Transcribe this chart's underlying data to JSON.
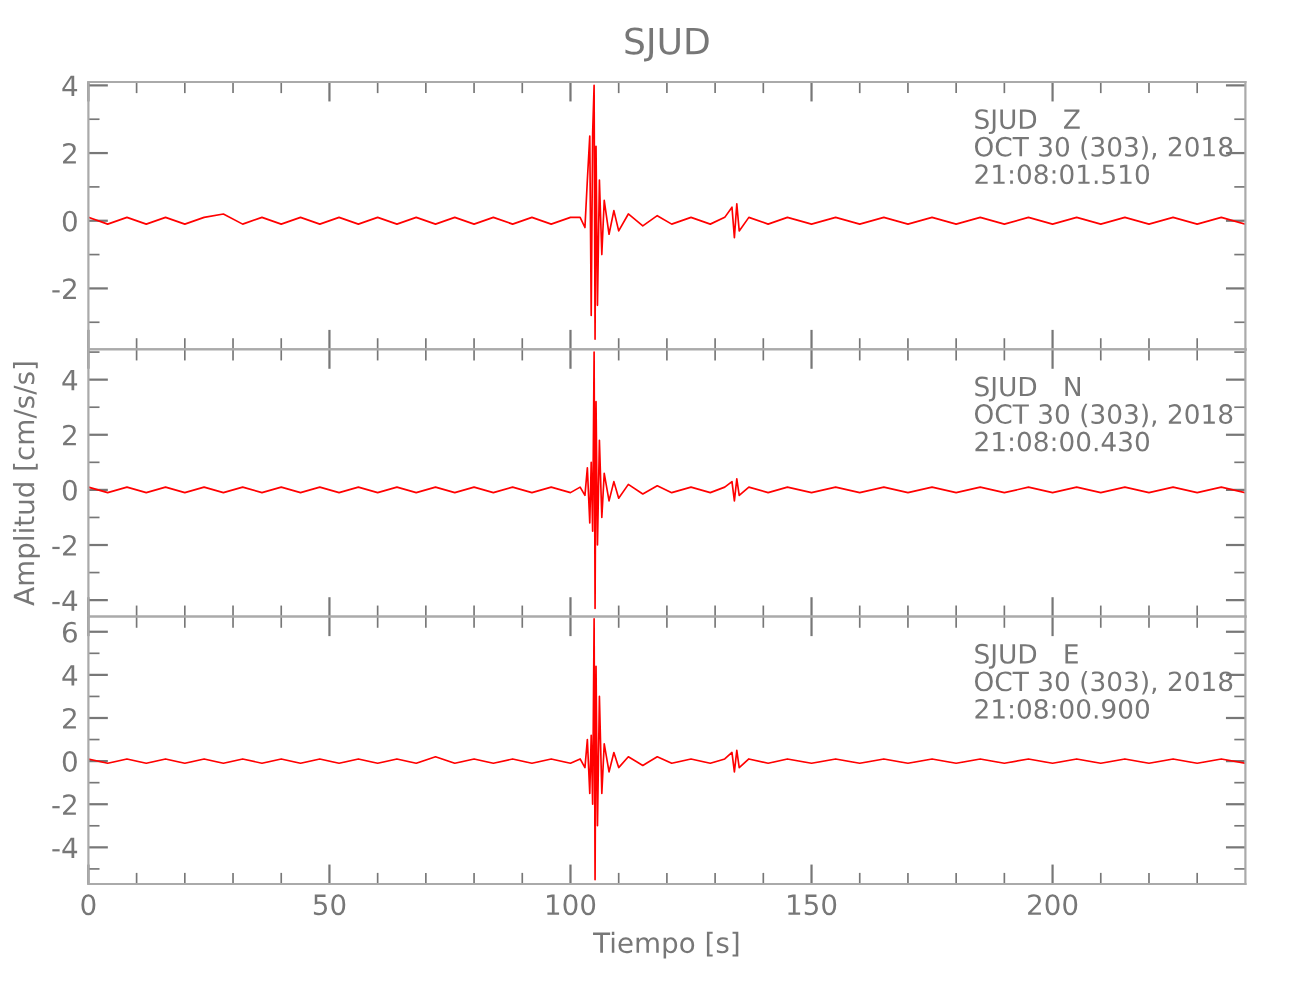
{
  "chart_data": [
    {
      "type": "line",
      "title": "SJUD",
      "tick_labels": "y",
      "annotations": [
        "SJUD   Z\nOCT 30 (303), 2018\n21:08:01.510"
      ],
      "x": [
        0,
        4,
        8,
        12,
        16,
        20,
        24,
        28,
        32,
        36,
        40,
        44,
        48,
        52,
        56,
        60,
        64,
        68,
        72,
        76,
        80,
        84,
        88,
        92,
        96,
        100,
        102,
        103,
        103.5,
        104,
        104.3,
        104.6,
        104.9,
        105.1,
        105.3,
        105.6,
        106,
        106.5,
        107,
        108,
        109,
        110,
        112,
        115,
        118,
        121,
        125,
        129,
        132,
        133.5,
        134,
        134.5,
        135,
        137,
        141,
        145,
        150,
        155,
        160,
        165,
        170,
        175,
        180,
        185,
        190,
        195,
        200,
        205,
        210,
        215,
        220,
        225,
        230,
        235,
        240
      ],
      "series": [
        {
          "color": "#ff0000",
          "values": [
            0.1,
            -0.1,
            0.1,
            -0.1,
            0.1,
            -0.1,
            0.1,
            0.2,
            -0.1,
            0.1,
            -0.1,
            0.1,
            -0.1,
            0.1,
            -0.1,
            0.1,
            -0.1,
            0.1,
            -0.1,
            0.1,
            -0.1,
            0.1,
            -0.1,
            0.1,
            -0.1,
            0.1,
            0.1,
            -0.2,
            1.2,
            2.5,
            -2.8,
            2.6,
            4.0,
            -3.5,
            2.2,
            -2.5,
            1.2,
            -1.0,
            0.6,
            -0.4,
            0.3,
            -0.3,
            0.2,
            -0.15,
            0.15,
            -0.1,
            0.1,
            -0.1,
            0.1,
            0.4,
            -0.5,
            0.5,
            -0.3,
            0.1,
            -0.1,
            0.1,
            -0.1,
            0.1,
            -0.1,
            0.1,
            -0.1,
            0.1,
            -0.1,
            0.1,
            -0.1,
            0.1,
            -0.1,
            0.1,
            -0.1,
            0.1,
            -0.1,
            0.1,
            -0.1,
            0.1,
            -0.1
          ]
        }
      ],
      "xlim": [
        0,
        240
      ],
      "ylim": [
        -3.8,
        4.1
      ],
      "xticks": [
        0,
        {
          "value": 10,
          "label": null
        },
        {
          "value": 20,
          "label": null
        },
        {
          "value": 30,
          "label": null
        },
        {
          "value": 40,
          "label": null
        },
        50,
        {
          "value": 60,
          "label": null
        },
        {
          "value": 70,
          "label": null
        },
        {
          "value": 80,
          "label": null
        },
        {
          "value": 90,
          "label": null
        },
        100,
        {
          "value": 110,
          "label": null
        },
        {
          "value": 120,
          "label": null
        },
        {
          "value": 130,
          "label": null
        },
        {
          "value": 140,
          "label": null
        },
        150,
        {
          "value": 160,
          "label": null
        },
        {
          "value": 170,
          "label": null
        },
        {
          "value": 180,
          "label": null
        },
        {
          "value": 190,
          "label": null
        },
        200,
        {
          "value": 210,
          "label": null
        },
        {
          "value": 220,
          "label": null
        },
        {
          "value": 230,
          "label": null
        }
      ],
      "yticks": [
        {
          "value": -3,
          "label": null
        },
        -2,
        {
          "value": -1,
          "label": null
        },
        0,
        {
          "value": 1,
          "label": null
        },
        2,
        {
          "value": 3,
          "label": null
        },
        4
      ]
    },
    {
      "type": "line",
      "ylabel": "Amplitud [cm/s/s]",
      "tick_labels": "y",
      "annotations": [
        "SJUD   N\nOCT 30 (303), 2018\n21:08:00.430"
      ],
      "x": [
        0,
        4,
        8,
        12,
        16,
        20,
        24,
        28,
        32,
        36,
        40,
        44,
        48,
        52,
        56,
        60,
        64,
        68,
        72,
        76,
        80,
        84,
        88,
        92,
        96,
        100,
        102,
        103,
        103.5,
        104,
        104.3,
        104.6,
        104.9,
        105.1,
        105.3,
        105.6,
        106,
        106.5,
        107,
        108,
        109,
        110,
        112,
        115,
        118,
        121,
        125,
        129,
        132,
        133.5,
        134,
        134.5,
        135,
        137,
        141,
        145,
        150,
        155,
        160,
        165,
        170,
        175,
        180,
        185,
        190,
        195,
        200,
        205,
        210,
        215,
        220,
        225,
        230,
        235,
        240
      ],
      "series": [
        {
          "color": "#ff0000",
          "values": [
            0.1,
            -0.1,
            0.1,
            -0.1,
            0.1,
            -0.1,
            0.1,
            -0.1,
            0.1,
            -0.1,
            0.1,
            -0.1,
            0.1,
            -0.1,
            0.1,
            -0.1,
            0.1,
            -0.1,
            0.1,
            -0.1,
            0.1,
            -0.1,
            0.1,
            -0.1,
            0.1,
            -0.1,
            0.1,
            -0.2,
            0.8,
            -1.2,
            1.0,
            -1.5,
            5.0,
            -4.3,
            3.2,
            -2.0,
            1.8,
            -1.0,
            0.6,
            -0.4,
            0.3,
            -0.3,
            0.2,
            -0.15,
            0.15,
            -0.1,
            0.1,
            -0.1,
            0.1,
            0.3,
            -0.4,
            0.4,
            -0.2,
            0.1,
            -0.1,
            0.1,
            -0.1,
            0.1,
            -0.1,
            0.1,
            -0.1,
            0.1,
            -0.1,
            0.1,
            -0.1,
            0.1,
            -0.1,
            0.1,
            -0.1,
            0.1,
            -0.1,
            0.1,
            -0.1,
            0.1,
            -0.1
          ]
        }
      ],
      "xlim": [
        0,
        240
      ],
      "ylim": [
        -4.6,
        5.1
      ],
      "xticks": [
        0,
        {
          "value": 10,
          "label": null
        },
        {
          "value": 20,
          "label": null
        },
        {
          "value": 30,
          "label": null
        },
        {
          "value": 40,
          "label": null
        },
        50,
        {
          "value": 60,
          "label": null
        },
        {
          "value": 70,
          "label": null
        },
        {
          "value": 80,
          "label": null
        },
        {
          "value": 90,
          "label": null
        },
        100,
        {
          "value": 110,
          "label": null
        },
        {
          "value": 120,
          "label": null
        },
        {
          "value": 130,
          "label": null
        },
        {
          "value": 140,
          "label": null
        },
        150,
        {
          "value": 160,
          "label": null
        },
        {
          "value": 170,
          "label": null
        },
        {
          "value": 180,
          "label": null
        },
        {
          "value": 190,
          "label": null
        },
        200,
        {
          "value": 210,
          "label": null
        },
        {
          "value": 220,
          "label": null
        },
        {
          "value": 230,
          "label": null
        }
      ],
      "yticks": [
        -4,
        {
          "value": -3,
          "label": null
        },
        -2,
        {
          "value": -1,
          "label": null
        },
        0,
        {
          "value": 1,
          "label": null
        },
        2,
        {
          "value": 3,
          "label": null
        },
        4,
        {
          "value": 5,
          "label": null
        }
      ]
    },
    {
      "type": "line",
      "xlabel": "Tiempo [s]",
      "annotations": [
        "SJUD   E\nOCT 30 (303), 2018\n21:08:00.900"
      ],
      "x": [
        0,
        4,
        8,
        12,
        16,
        20,
        24,
        28,
        32,
        36,
        40,
        44,
        48,
        52,
        56,
        60,
        64,
        68,
        72,
        76,
        80,
        84,
        88,
        92,
        96,
        100,
        102,
        103,
        103.5,
        104,
        104.3,
        104.6,
        104.9,
        105.1,
        105.3,
        105.6,
        106,
        106.5,
        107,
        108,
        109,
        110,
        112,
        115,
        118,
        121,
        125,
        129,
        132,
        133.5,
        134,
        134.5,
        135,
        137,
        141,
        145,
        150,
        155,
        160,
        165,
        170,
        175,
        180,
        185,
        190,
        195,
        200,
        205,
        210,
        215,
        220,
        225,
        230,
        235,
        240
      ],
      "series": [
        {
          "color": "#ff0000",
          "values": [
            0.1,
            -0.1,
            0.1,
            -0.1,
            0.1,
            -0.1,
            0.1,
            -0.1,
            0.1,
            -0.1,
            0.1,
            -0.1,
            0.1,
            -0.1,
            0.1,
            -0.1,
            0.1,
            -0.1,
            0.2,
            -0.1,
            0.1,
            -0.1,
            0.1,
            -0.1,
            0.1,
            -0.1,
            0.1,
            -0.3,
            1.0,
            -1.5,
            1.2,
            -2.0,
            6.6,
            -5.5,
            4.4,
            -3.0,
            3.0,
            -1.5,
            0.8,
            -0.5,
            0.4,
            -0.3,
            0.2,
            -0.2,
            0.2,
            -0.1,
            0.1,
            -0.1,
            0.1,
            0.4,
            -0.5,
            0.5,
            -0.3,
            0.1,
            -0.1,
            0.1,
            -0.1,
            0.1,
            -0.1,
            0.1,
            -0.1,
            0.1,
            -0.1,
            0.1,
            -0.1,
            0.1,
            -0.1,
            0.1,
            -0.1,
            0.1,
            -0.1,
            0.1,
            -0.1,
            0.1,
            -0.1
          ]
        }
      ],
      "xlim": [
        0,
        240
      ],
      "ylim": [
        -5.7,
        6.7
      ],
      "xticks": [
        0,
        {
          "value": 10,
          "label": null
        },
        {
          "value": 20,
          "label": null
        },
        {
          "value": 30,
          "label": null
        },
        {
          "value": 40,
          "label": null
        },
        50,
        {
          "value": 60,
          "label": null
        },
        {
          "value": 70,
          "label": null
        },
        {
          "value": 80,
          "label": null
        },
        {
          "value": 90,
          "label": null
        },
        100,
        {
          "value": 110,
          "label": null
        },
        {
          "value": 120,
          "label": null
        },
        {
          "value": 130,
          "label": null
        },
        {
          "value": 140,
          "label": null
        },
        150,
        {
          "value": 160,
          "label": null
        },
        {
          "value": 170,
          "label": null
        },
        {
          "value": 180,
          "label": null
        },
        {
          "value": 190,
          "label": null
        },
        200,
        {
          "value": 210,
          "label": null
        },
        {
          "value": 220,
          "label": null
        },
        {
          "value": 230,
          "label": null
        }
      ],
      "yticks": [
        {
          "value": -5,
          "label": null
        },
        -4,
        {
          "value": -3,
          "label": null
        },
        -2,
        {
          "value": -1,
          "label": null
        },
        0,
        {
          "value": 1,
          "label": null
        },
        2,
        {
          "value": 3,
          "label": null
        },
        4,
        {
          "value": 5,
          "label": null
        },
        6
      ]
    }
  ]
}
